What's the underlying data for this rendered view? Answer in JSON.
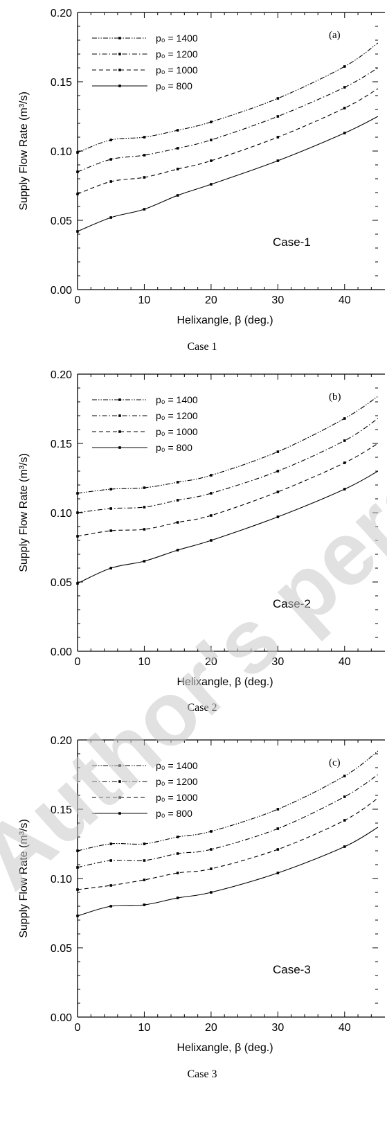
{
  "watermark": {
    "text": "Author's personal"
  },
  "chart_data": [
    {
      "type": "line",
      "panel_label": "(a)",
      "case_label": "Case-1",
      "caption": "Case 1",
      "xlabel": "Helixangle, β (deg.)",
      "ylabel": "Supply Flow Rate (m³/s)",
      "xlim": [
        0,
        45
      ],
      "ylim": [
        0,
        0.2
      ],
      "x_ticks": [
        "0",
        "10",
        "20",
        "30",
        "40"
      ],
      "y_ticks": [
        "0.00",
        "0.05",
        "0.10",
        "0.15",
        "0.20"
      ],
      "legend_position": "top-left",
      "series": [
        {
          "name": "p₀ = 1400",
          "style": "dash-dot-dot",
          "points": [
            [
              0,
              0.099
            ],
            [
              5,
              0.108
            ],
            [
              10,
              0.11
            ],
            [
              15,
              0.115
            ],
            [
              20,
              0.121
            ],
            [
              30,
              0.138
            ],
            [
              40,
              0.161
            ],
            [
              45,
              0.178
            ]
          ]
        },
        {
          "name": "p₀ = 1200",
          "style": "dash-dot",
          "points": [
            [
              0,
              0.085
            ],
            [
              5,
              0.094
            ],
            [
              10,
              0.097
            ],
            [
              15,
              0.102
            ],
            [
              20,
              0.108
            ],
            [
              30,
              0.125
            ],
            [
              40,
              0.146
            ],
            [
              45,
              0.16
            ]
          ]
        },
        {
          "name": "p₀ = 1000",
          "style": "dashed",
          "points": [
            [
              0,
              0.069
            ],
            [
              5,
              0.078
            ],
            [
              10,
              0.081
            ],
            [
              15,
              0.087
            ],
            [
              20,
              0.093
            ],
            [
              30,
              0.11
            ],
            [
              40,
              0.131
            ],
            [
              45,
              0.145
            ]
          ]
        },
        {
          "name": "p₀ = 800",
          "style": "solid",
          "points": [
            [
              0,
              0.042
            ],
            [
              5,
              0.052
            ],
            [
              10,
              0.058
            ],
            [
              15,
              0.068
            ],
            [
              20,
              0.076
            ],
            [
              30,
              0.093
            ],
            [
              40,
              0.113
            ],
            [
              45,
              0.125
            ]
          ]
        }
      ]
    },
    {
      "type": "line",
      "panel_label": "(b)",
      "case_label": "Case-2",
      "caption": "Case 2",
      "xlabel": "Helixangle, β (deg.)",
      "ylabel": "Supply Flow Rate (m³/s)",
      "xlim": [
        0,
        45
      ],
      "ylim": [
        0,
        0.2
      ],
      "x_ticks": [
        "0",
        "10",
        "20",
        "30",
        "40"
      ],
      "y_ticks": [
        "0.00",
        "0.05",
        "0.10",
        "0.15",
        "0.20"
      ],
      "legend_position": "top-left",
      "series": [
        {
          "name": "p₀ = 1400",
          "style": "dash-dot-dot",
          "points": [
            [
              0,
              0.114
            ],
            [
              5,
              0.117
            ],
            [
              10,
              0.118
            ],
            [
              15,
              0.122
            ],
            [
              20,
              0.127
            ],
            [
              30,
              0.144
            ],
            [
              40,
              0.168
            ],
            [
              45,
              0.184
            ]
          ]
        },
        {
          "name": "p₀ = 1200",
          "style": "dash-dot",
          "points": [
            [
              0,
              0.1
            ],
            [
              5,
              0.103
            ],
            [
              10,
              0.104
            ],
            [
              15,
              0.109
            ],
            [
              20,
              0.114
            ],
            [
              30,
              0.13
            ],
            [
              40,
              0.152
            ],
            [
              45,
              0.168
            ]
          ]
        },
        {
          "name": "p₀ = 1000",
          "style": "dashed",
          "points": [
            [
              0,
              0.083
            ],
            [
              5,
              0.087
            ],
            [
              10,
              0.088
            ],
            [
              15,
              0.093
            ],
            [
              20,
              0.098
            ],
            [
              30,
              0.115
            ],
            [
              40,
              0.136
            ],
            [
              45,
              0.15
            ]
          ]
        },
        {
          "name": "p₀ = 800",
          "style": "solid",
          "points": [
            [
              0,
              0.049
            ],
            [
              5,
              0.06
            ],
            [
              10,
              0.065
            ],
            [
              15,
              0.073
            ],
            [
              20,
              0.08
            ],
            [
              30,
              0.097
            ],
            [
              40,
              0.117
            ],
            [
              45,
              0.13
            ]
          ]
        }
      ]
    },
    {
      "type": "line",
      "panel_label": "(c)",
      "case_label": "Case-3",
      "caption": "Case 3",
      "xlabel": "Helixangle, β (deg.)",
      "ylabel": "Supply Flow Rate (m³/s)",
      "xlim": [
        0,
        45
      ],
      "ylim": [
        0,
        0.2
      ],
      "x_ticks": [
        "0",
        "10",
        "20",
        "30",
        "40"
      ],
      "y_ticks": [
        "0.00",
        "0.05",
        "0.10",
        "0.15",
        "0.20"
      ],
      "legend_position": "top-left",
      "series": [
        {
          "name": "p₀ = 1400",
          "style": "dash-dot-dot",
          "points": [
            [
              0,
              0.12
            ],
            [
              5,
              0.125
            ],
            [
              10,
              0.125
            ],
            [
              15,
              0.13
            ],
            [
              20,
              0.134
            ],
            [
              30,
              0.15
            ],
            [
              40,
              0.174
            ],
            [
              45,
              0.192
            ]
          ]
        },
        {
          "name": "p₀ = 1200",
          "style": "dash-dot",
          "points": [
            [
              0,
              0.108
            ],
            [
              5,
              0.113
            ],
            [
              10,
              0.113
            ],
            [
              15,
              0.118
            ],
            [
              20,
              0.121
            ],
            [
              30,
              0.136
            ],
            [
              40,
              0.159
            ],
            [
              45,
              0.175
            ]
          ]
        },
        {
          "name": "p₀ = 1000",
          "style": "dashed",
          "points": [
            [
              0,
              0.092
            ],
            [
              5,
              0.095
            ],
            [
              10,
              0.099
            ],
            [
              15,
              0.104
            ],
            [
              20,
              0.107
            ],
            [
              30,
              0.121
            ],
            [
              40,
              0.142
            ],
            [
              45,
              0.158
            ]
          ]
        },
        {
          "name": "p₀ = 800",
          "style": "solid",
          "points": [
            [
              0,
              0.073
            ],
            [
              5,
              0.08
            ],
            [
              10,
              0.081
            ],
            [
              15,
              0.086
            ],
            [
              20,
              0.09
            ],
            [
              30,
              0.104
            ],
            [
              40,
              0.123
            ],
            [
              45,
              0.137
            ]
          ]
        }
      ]
    }
  ]
}
